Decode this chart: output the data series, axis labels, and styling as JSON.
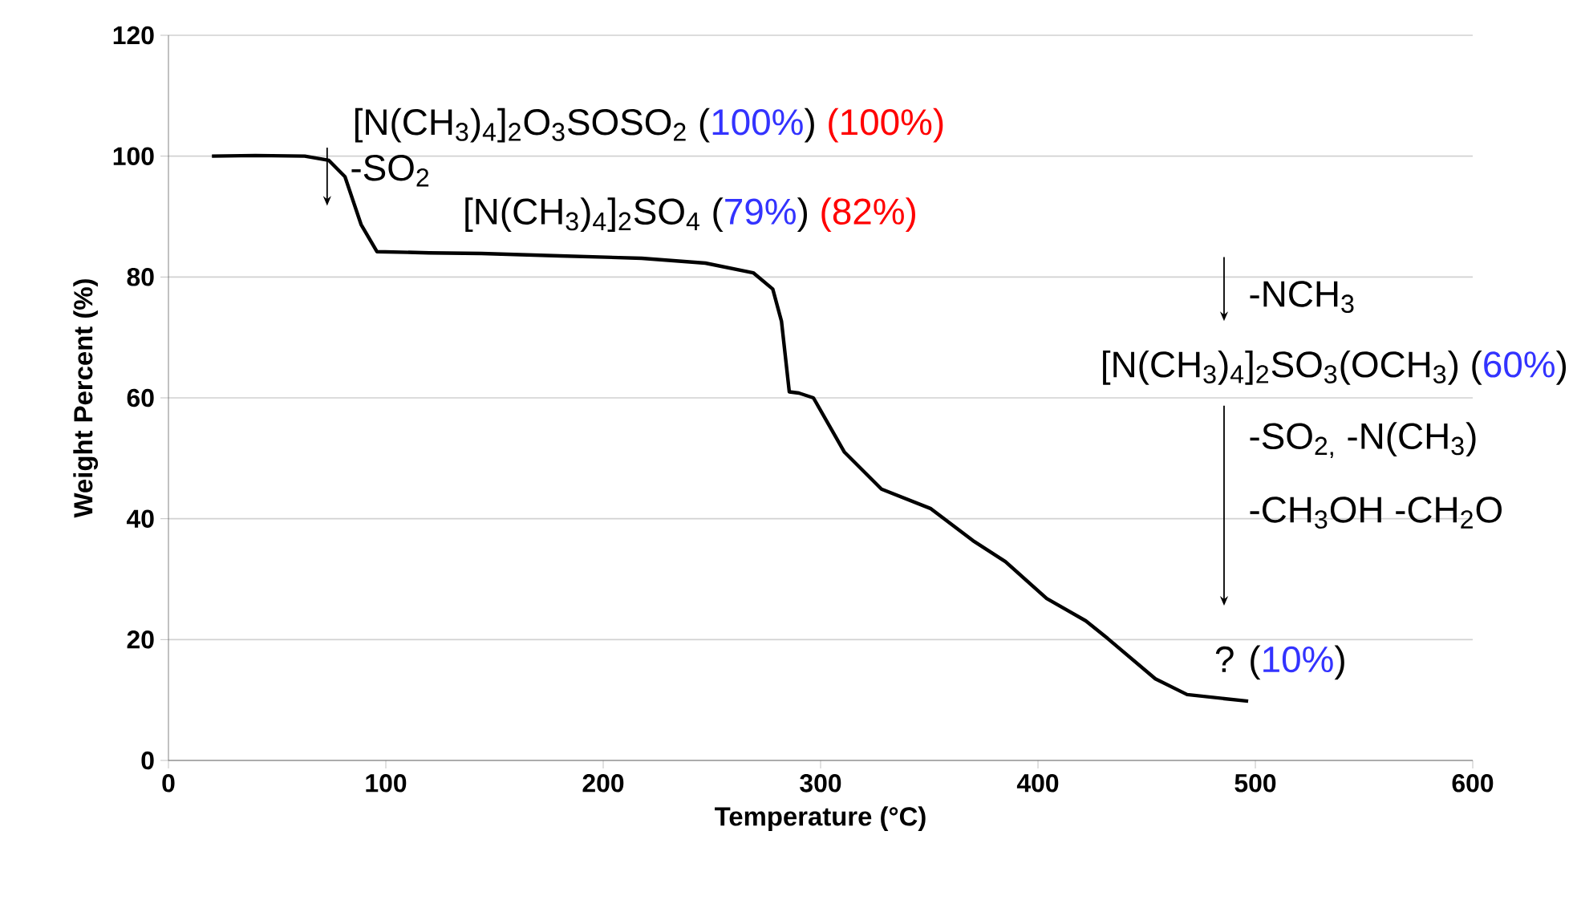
{
  "chart_data": {
    "type": "line",
    "xlabel": "Temperature (°C)",
    "ylabel": "Weight Percent (%)",
    "xlim": [
      0,
      600
    ],
    "ylim": [
      0,
      120
    ],
    "xticks": [
      0,
      100,
      200,
      300,
      400,
      500,
      600
    ],
    "yticks": [
      0,
      20,
      40,
      60,
      80,
      100,
      120
    ],
    "grid": "y",
    "x": [
      20,
      40,
      62.7,
      73.8,
      81.2,
      88.6,
      95.9,
      120,
      144,
      180,
      217.7,
      247,
      269,
      278,
      282,
      285.6,
      290,
      296.7,
      311,
      328,
      350.5,
      370,
      385,
      404,
      422,
      432,
      454,
      468.6,
      496.7
    ],
    "series": [
      {
        "color": "#000000",
        "values": [
          100,
          100.1,
          100,
          99.3,
          96.6,
          88.7,
          84.2,
          84,
          83.9,
          83.5,
          83.1,
          82.3,
          80.7,
          78,
          72.7,
          61,
          60.8,
          60,
          51,
          44.9,
          41.7,
          36.4,
          32.9,
          26.8,
          23.1,
          20.2,
          13.5,
          10.9,
          9.8
        ]
      }
    ],
    "annotations": [
      "[N(CH$_{3}$)$_{4}$]$_{2}$O$_{3}$SOSO$_{2}$ (",
      "100%",
      ")",
      "(100%)",
      "-SO$_{2}$",
      "[N(CH$_{3}$)$_{4}$]$_{2}$SO$_{4}$ (",
      "79%",
      ")",
      "(82%)",
      "-NCH$_{3}$",
      "[N(CH$_{3}$)$_{4}$]$_{2}$SO$_{3}$(OCH$_{3}$) (",
      "60%",
      ")",
      "-SO$_{2,}$ -N(CH$_{3}$)",
      "-CH$_{3}$OH -CH$_{2}$O",
      "? (",
      "10%",
      ")"
    ]
  }
}
